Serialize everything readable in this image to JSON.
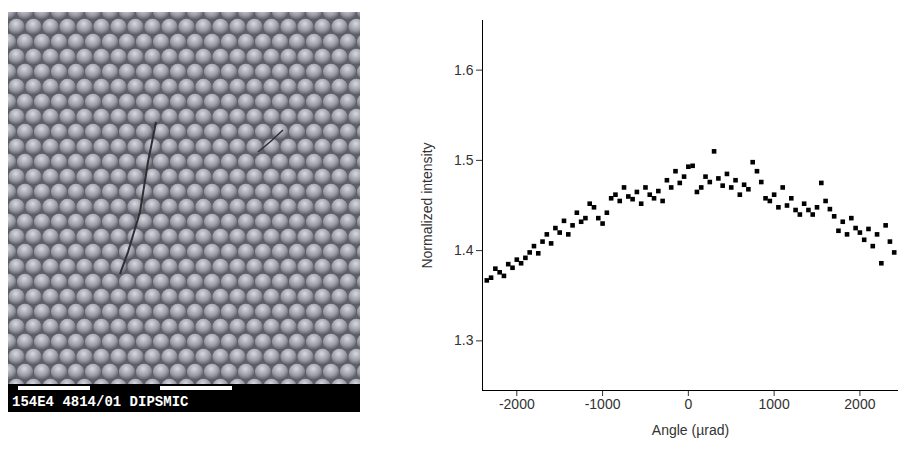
{
  "micrograph": {
    "label": "154E4 4814/01 DIPSMIC"
  },
  "chart_data": {
    "type": "scatter",
    "xlabel": "Angle (µrad)",
    "ylabel": "Normalized intensity",
    "xlim": [
      -2400,
      2450
    ],
    "ylim": [
      1.245,
      1.655
    ],
    "xticks": [
      -2000,
      -1000,
      0,
      1000,
      2000
    ],
    "yticks": [
      1.3,
      1.4,
      1.5,
      1.6
    ],
    "color": "#000000",
    "marker": "square",
    "grid": false,
    "x": [
      -2350,
      -2300,
      -2250,
      -2200,
      -2150,
      -2100,
      -2050,
      -2000,
      -1950,
      -1900,
      -1850,
      -1800,
      -1750,
      -1700,
      -1650,
      -1600,
      -1550,
      -1500,
      -1450,
      -1400,
      -1350,
      -1300,
      -1250,
      -1200,
      -1150,
      -1100,
      -1050,
      -1000,
      -950,
      -900,
      -850,
      -800,
      -750,
      -700,
      -650,
      -600,
      -550,
      -500,
      -450,
      -400,
      -350,
      -300,
      -250,
      -200,
      -150,
      -100,
      -50,
      0,
      50,
      100,
      150,
      200,
      250,
      300,
      350,
      400,
      450,
      500,
      550,
      600,
      650,
      700,
      750,
      800,
      850,
      900,
      950,
      1000,
      1050,
      1100,
      1150,
      1200,
      1250,
      1300,
      1350,
      1400,
      1450,
      1500,
      1550,
      1600,
      1650,
      1700,
      1750,
      1800,
      1850,
      1900,
      1950,
      2000,
      2050,
      2100,
      2150,
      2200,
      2250,
      2300,
      2350,
      2400
    ],
    "values": [
      1.367,
      1.37,
      1.38,
      1.376,
      1.372,
      1.385,
      1.381,
      1.39,
      1.386,
      1.392,
      1.398,
      1.405,
      1.397,
      1.41,
      1.418,
      1.408,
      1.425,
      1.42,
      1.433,
      1.418,
      1.428,
      1.442,
      1.432,
      1.436,
      1.452,
      1.448,
      1.436,
      1.43,
      1.442,
      1.458,
      1.462,
      1.455,
      1.47,
      1.46,
      1.457,
      1.465,
      1.452,
      1.47,
      1.462,
      1.458,
      1.466,
      1.455,
      1.478,
      1.47,
      1.488,
      1.475,
      1.482,
      1.493,
      1.494,
      1.465,
      1.47,
      1.482,
      1.476,
      1.51,
      1.48,
      1.472,
      1.485,
      1.47,
      1.478,
      1.462,
      1.473,
      1.468,
      1.498,
      1.488,
      1.476,
      1.458,
      1.455,
      1.462,
      1.448,
      1.47,
      1.45,
      1.458,
      1.445,
      1.44,
      1.452,
      1.445,
      1.44,
      1.448,
      1.475,
      1.455,
      1.446,
      1.438,
      1.422,
      1.432,
      1.418,
      1.436,
      1.425,
      1.42,
      1.412,
      1.424,
      1.405,
      1.418,
      1.386,
      1.428,
      1.41,
      1.398
    ]
  }
}
